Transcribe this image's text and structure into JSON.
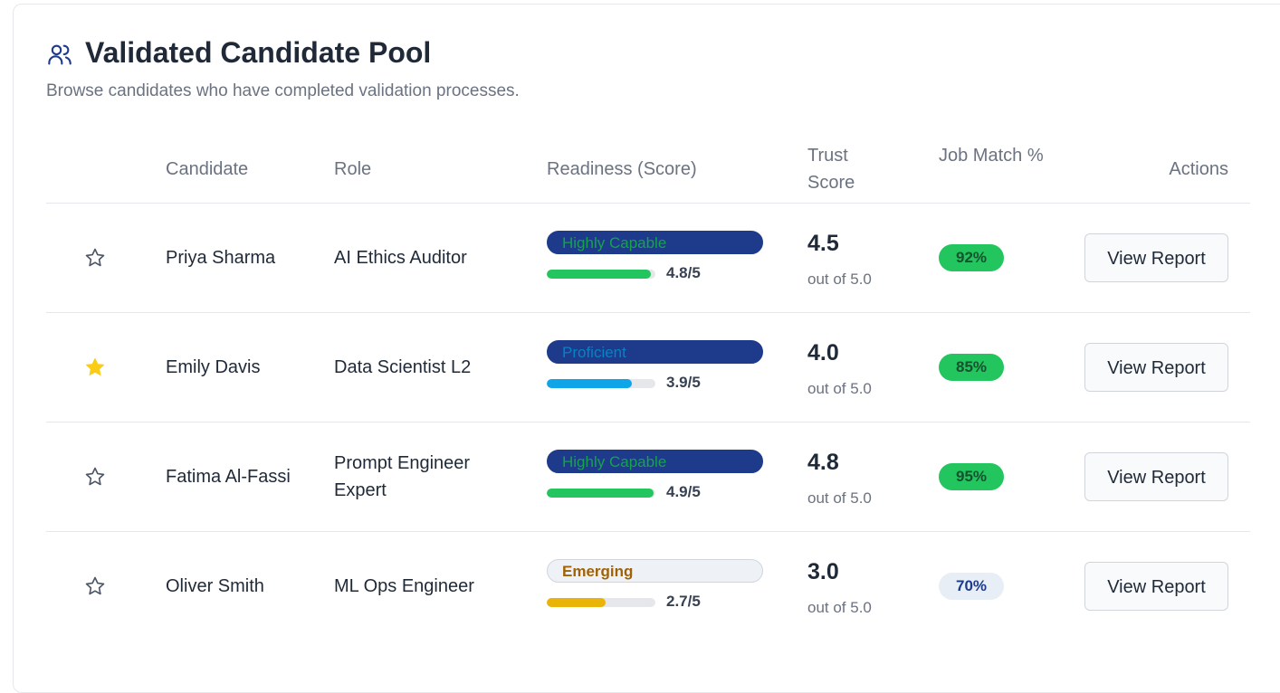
{
  "header": {
    "title": "Validated Candidate Pool",
    "subtitle": "Browse candidates who have completed validation processes."
  },
  "table": {
    "columns": [
      "Candidate",
      "Role",
      "Readiness (Score)",
      "Trust Score",
      "Job Match %",
      "Actions"
    ],
    "rows": [
      {
        "starred": false,
        "name": "Priya Sharma",
        "role": "AI Ethics Auditor",
        "readiness": "Highly Capable",
        "readiness_style": "capable",
        "score": 4.8,
        "score_max": 5,
        "score_label": "4.8/5",
        "bar_color": "#22c55e",
        "trust": "4.5",
        "trust_note": "out of 5.0",
        "match": "92%",
        "match_style": "high",
        "action": "View Report"
      },
      {
        "starred": true,
        "name": "Emily Davis",
        "role": "Data Scientist L2",
        "readiness": "Proficient",
        "readiness_style": "proficient",
        "score": 3.9,
        "score_max": 5,
        "score_label": "3.9/5",
        "bar_color": "#0ea5e9",
        "trust": "4.0",
        "trust_note": "out of 5.0",
        "match": "85%",
        "match_style": "high",
        "action": "View Report"
      },
      {
        "starred": false,
        "name": "Fatima Al-Fassi",
        "role": "Prompt Engineer Expert",
        "readiness": "Highly Capable",
        "readiness_style": "capable",
        "score": 4.9,
        "score_max": 5,
        "score_label": "4.9/5",
        "bar_color": "#22c55e",
        "trust": "4.8",
        "trust_note": "out of 5.0",
        "match": "95%",
        "match_style": "high",
        "action": "View Report"
      },
      {
        "starred": false,
        "name": "Oliver Smith",
        "role": "ML Ops Engineer",
        "readiness": "Emerging",
        "readiness_style": "emerging",
        "score": 2.7,
        "score_max": 5,
        "score_label": "2.7/5",
        "bar_color": "#eab308",
        "trust": "3.0",
        "trust_note": "out of 5.0",
        "match": "70%",
        "match_style": "low",
        "action": "View Report"
      }
    ]
  }
}
